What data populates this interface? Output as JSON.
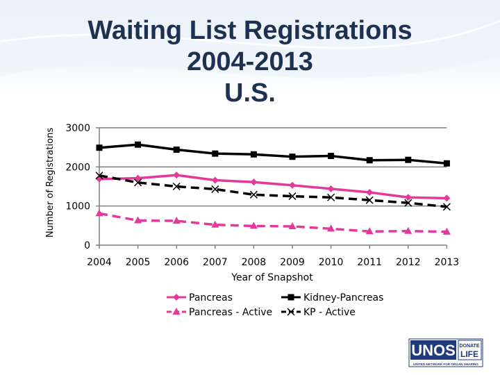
{
  "slide": {
    "title_lines": [
      "Waiting List Registrations",
      "2004-2013",
      "U.S."
    ]
  },
  "chart_data": {
    "type": "line",
    "title": "Waiting List Registrations 2004-2013 U.S.",
    "xlabel": "Year of Snapshot",
    "ylabel": "Number of Registrations",
    "categories": [
      "2004",
      "2005",
      "2006",
      "2007",
      "2008",
      "2009",
      "2010",
      "2011",
      "2012",
      "2013"
    ],
    "ylim": [
      0,
      3000
    ],
    "yticks": [
      "0",
      "1000",
      "2000",
      "3000"
    ],
    "grid": true,
    "legend_position": "bottom",
    "series": [
      {
        "name": "Pancreas",
        "values": [
          1690,
          1710,
          1790,
          1660,
          1610,
          1530,
          1440,
          1350,
          1220,
          1200
        ],
        "color": "#e5399a",
        "marker": "diamond",
        "dash": "solid"
      },
      {
        "name": "Kidney-Pancreas",
        "values": [
          2490,
          2570,
          2440,
          2340,
          2320,
          2260,
          2280,
          2170,
          2180,
          2090
        ],
        "color": "#000000",
        "marker": "square",
        "dash": "solid"
      },
      {
        "name": "Pancreas - Active",
        "values": [
          810,
          630,
          620,
          520,
          490,
          480,
          420,
          350,
          360,
          340
        ],
        "color": "#e5399a",
        "marker": "triangle",
        "dash": "dashed"
      },
      {
        "name": "KP - Active",
        "values": [
          1780,
          1600,
          1500,
          1430,
          1290,
          1250,
          1220,
          1150,
          1080,
          980
        ],
        "color": "#000000",
        "marker": "x",
        "dash": "dashed"
      }
    ]
  },
  "logo": {
    "brand": "UNOS",
    "tag_top": "DONATE",
    "tag_bottom": "LIFE",
    "tagline": "UNITED NETWORK FOR ORGAN SHARING",
    "brand_color": "#1f3a7a"
  }
}
